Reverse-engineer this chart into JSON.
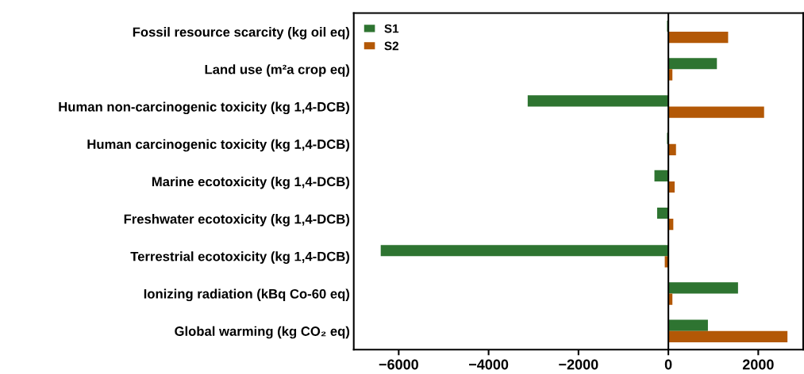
{
  "chart_data": {
    "type": "bar",
    "orientation": "horizontal",
    "categories": [
      "Fossil resource scarcity (kg oil eq)",
      "Land use (m²a crop eq)",
      "Human non-carcinogenic toxicity (kg 1,4-DCB)",
      "Human carcinogenic toxicity (kg 1,4-DCB)",
      "Marine ecotoxicity (kg 1,4-DCB)",
      "Freshwater ecotoxicity (kg 1,4-DCB)",
      "Terrestrial ecotoxicity (kg 1,4-DCB)",
      "Ionizing radiation (kBq Co-60 eq)",
      "Global warming (kg CO₂ eq)"
    ],
    "series": [
      {
        "name": "S1",
        "color": "#2e7431",
        "values": [
          -30,
          1080,
          -3130,
          -30,
          -310,
          -250,
          -6400,
          1550,
          880
        ]
      },
      {
        "name": "S2",
        "color": "#b35806",
        "values": [
          1330,
          90,
          2130,
          170,
          140,
          110,
          -80,
          90,
          2650
        ]
      }
    ],
    "xlim": [
      -7000,
      3000
    ],
    "xticks": [
      -6000,
      -4000,
      -2000,
      0,
      2000
    ],
    "ref_lines": [
      {
        "axis": "x",
        "value": 0,
        "label": null,
        "color": "#000000"
      }
    ],
    "legend": "top left",
    "grid": false
  }
}
